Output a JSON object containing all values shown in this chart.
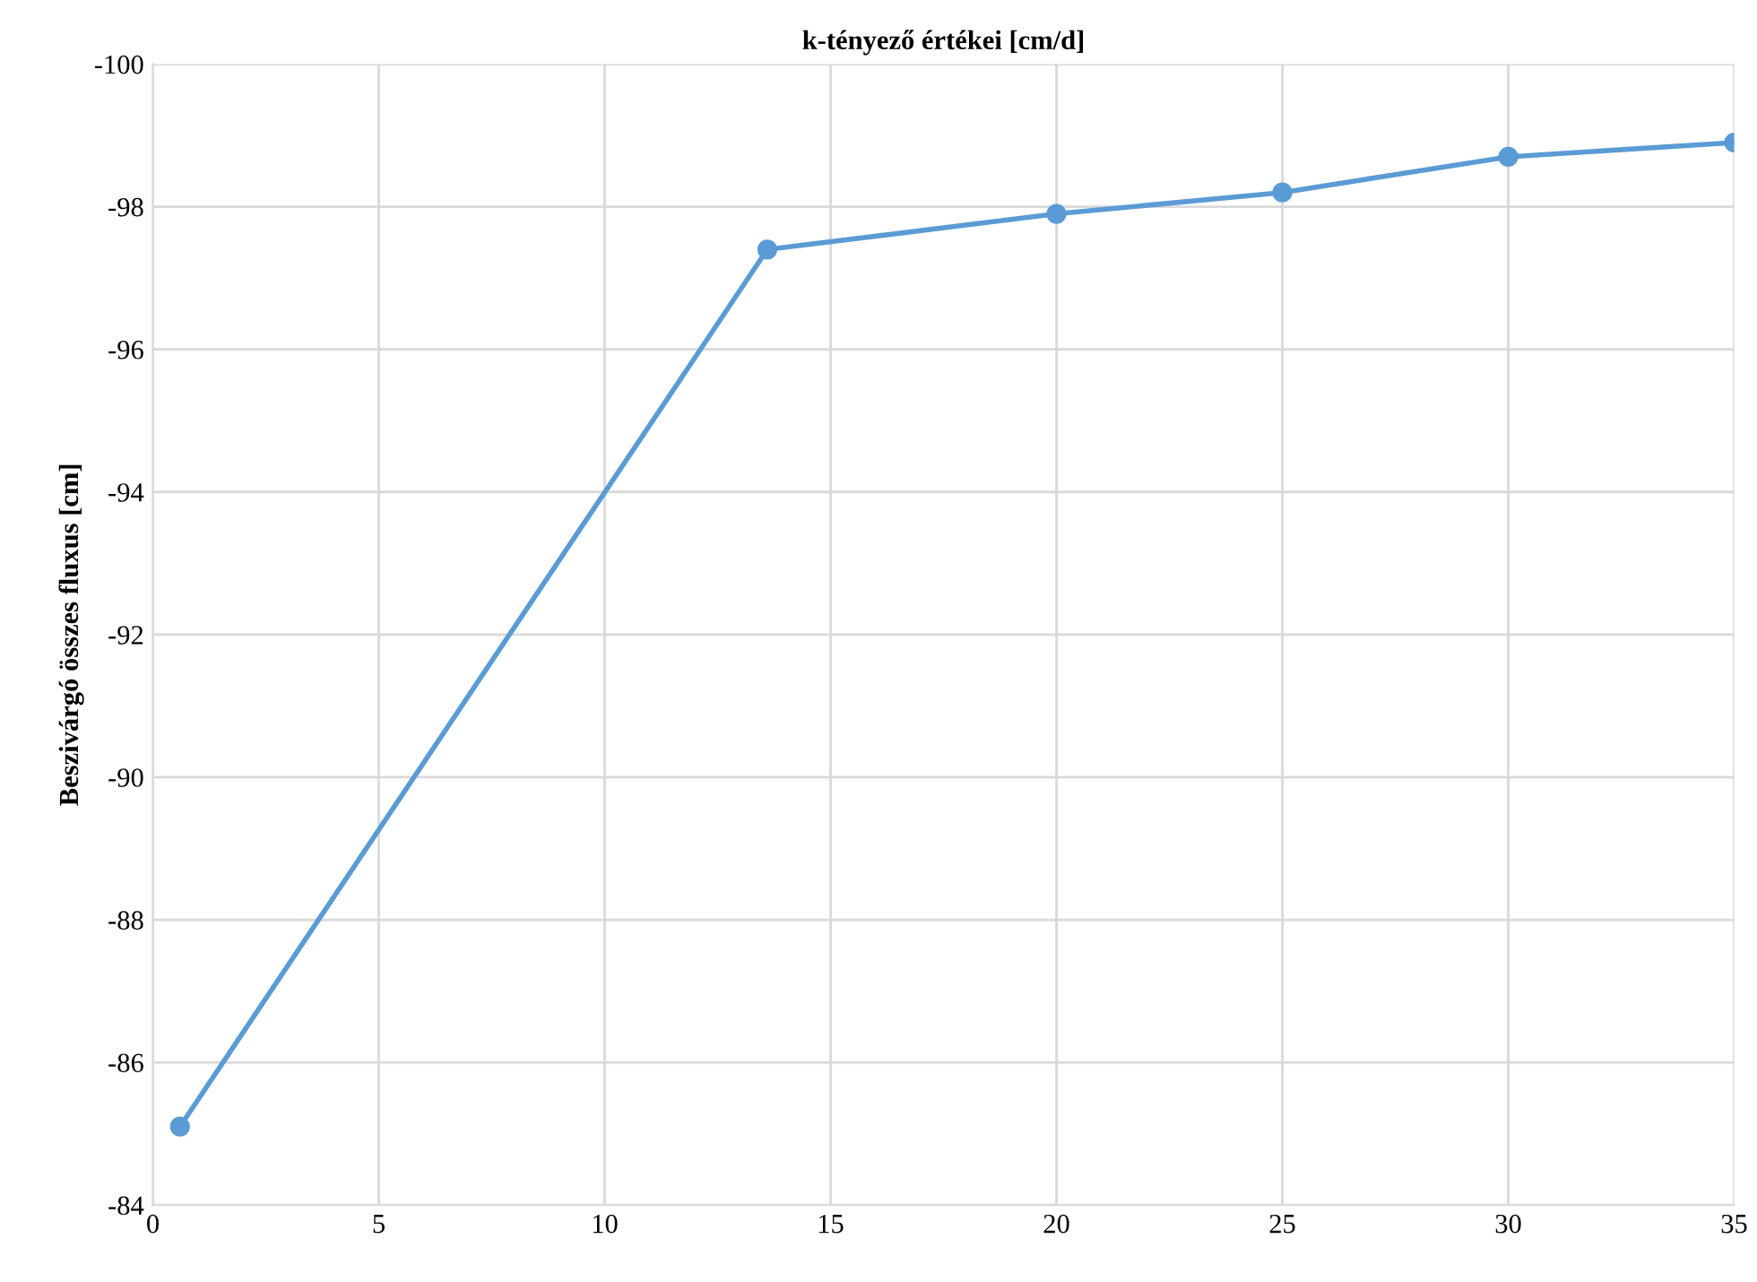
{
  "chart_data": {
    "type": "line",
    "title": "k-tényező értékei [cm/d]",
    "ylabel": "Beszivárgó összes fluxus [cm]",
    "x": [
      0.6,
      13.6,
      20,
      25,
      30,
      35
    ],
    "series": [
      {
        "color": "#5b9bd5",
        "values": [
          -85.1,
          -97.4,
          -97.9,
          -98.2,
          -98.7,
          -98.9
        ]
      }
    ],
    "xlim": [
      0,
      35
    ],
    "xticks": [
      0,
      5,
      10,
      15,
      20,
      25,
      30,
      35
    ],
    "ylim": [
      -84,
      -100
    ],
    "yticks": [
      -84,
      -86,
      -88,
      -90,
      -92,
      -94,
      -96,
      -98,
      -100
    ],
    "grid": true,
    "marker": "circle",
    "line_style": "solid",
    "legend": false
  }
}
